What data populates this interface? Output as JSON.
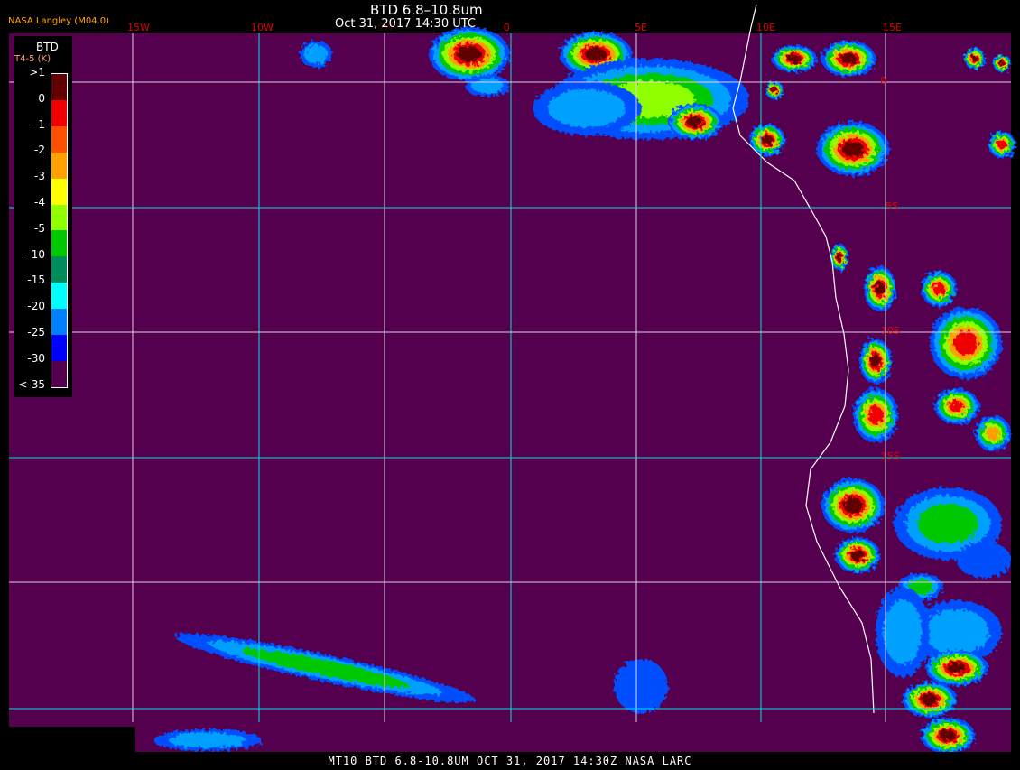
{
  "header": {
    "title": "BTD 6.8–10.8um",
    "datetime": "Oct 31, 2017 14:30 UTC",
    "credit": "NASA Langley (M04.0)"
  },
  "longitude_labels": [
    "15W",
    "10W",
    "5W",
    "0",
    "5E",
    "10E",
    "15E"
  ],
  "latitude_labels": [
    "0",
    "5S",
    "10S",
    "15S"
  ],
  "legend": {
    "title": "BTD",
    "subtitle": "T4-5 (K)",
    "entries": [
      {
        "label": ">1",
        "color": "#600000"
      },
      {
        "label": "0",
        "color": "#f00000"
      },
      {
        "label": "-1",
        "color": "#ff5000"
      },
      {
        "label": "-2",
        "color": "#ffa000"
      },
      {
        "label": "-3",
        "color": "#ffff00"
      },
      {
        "label": "-4",
        "color": "#90ff00"
      },
      {
        "label": "-5",
        "color": "#00c800"
      },
      {
        "label": "-10",
        "color": "#008c5a"
      },
      {
        "label": "-15",
        "color": "#00ffff"
      },
      {
        "label": "-20",
        "color": "#0080ff"
      },
      {
        "label": "-25",
        "color": "#0000ff"
      },
      {
        "label": "-30",
        "color": "#55004f"
      },
      {
        "label": "<-35",
        "color": null
      }
    ]
  },
  "colors": {
    "background": "#55004f",
    "grid_cyan": "#00e0e0",
    "grid_white": "#e0d0e0",
    "coastline": "#ffffff"
  },
  "footer": {
    "text": "MT10  BTD 6.8-10.8UM   OCT 31, 2017 14:30Z   NASA LARC"
  }
}
